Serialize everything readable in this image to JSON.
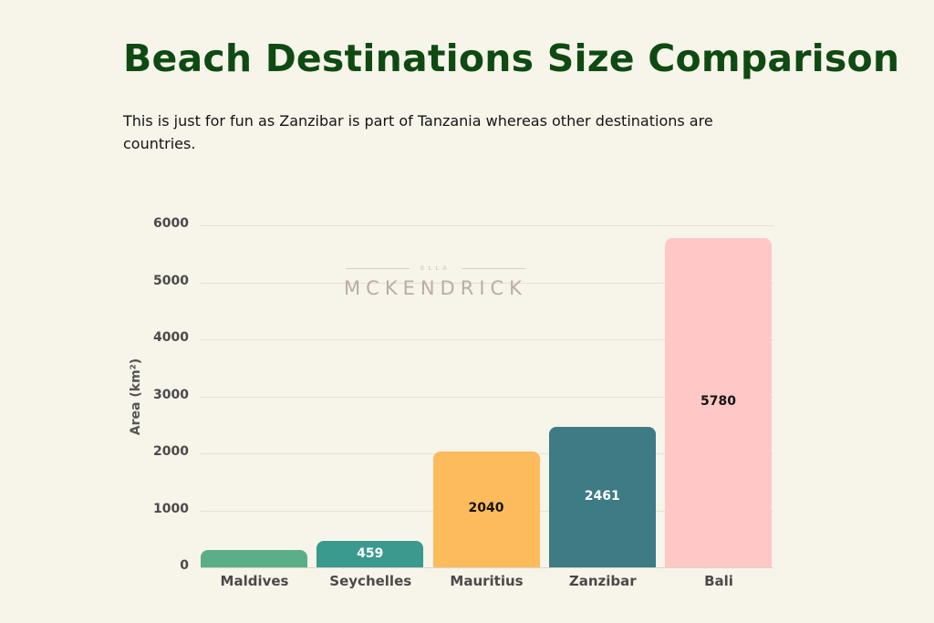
{
  "header": {
    "title": "Beach Destinations Size Comparison",
    "subtitle": "This is just for fun as Zanzibar is part of Tanzania whereas other destinations are countries."
  },
  "watermark": {
    "small": "ELLA",
    "large": "MCKENDRICK"
  },
  "chart_data": {
    "type": "bar",
    "title": "Beach Destinations Size Comparison",
    "subtitle": "This is just for fun as Zanzibar is part of Tanzania whereas other destinations are countries.",
    "xlabel": "",
    "ylabel": "Area (km²)",
    "ylim": [
      0,
      6000
    ],
    "yticks": [
      "0",
      "1000",
      "2000",
      "3000",
      "4000",
      "5000",
      "6000"
    ],
    "grid": true,
    "legend": "none",
    "categories": [
      "Maldives",
      "Seychelles",
      "Mauritius",
      "Zanzibar",
      "Bali"
    ],
    "values": [
      298,
      459,
      2040,
      2461,
      5780
    ],
    "data_labels": [
      "",
      "459",
      "2040",
      "2461",
      "5780"
    ],
    "colors": [
      "#5aae88",
      "#3a9a8e",
      "#fdbb5c",
      "#3d7b85",
      "#ffc8c6"
    ],
    "label_colors": [
      "#ffffff",
      "#ffffff",
      "#141414",
      "#ffffff",
      "#141414"
    ]
  }
}
